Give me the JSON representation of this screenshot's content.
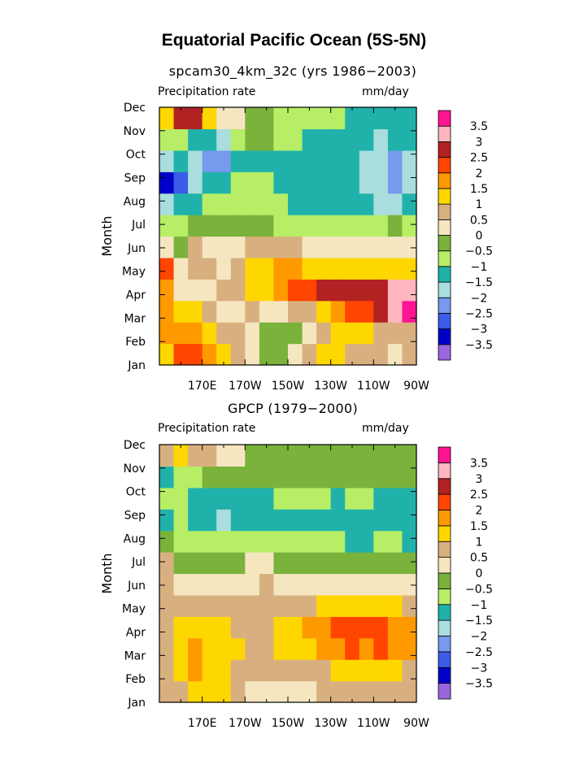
{
  "figure": {
    "title": "Equatorial Pacific Ocean (5S-5N)"
  },
  "palette": {
    "levels": [
      "-3.5",
      "-3",
      "-2.5",
      "-2",
      "-1.5",
      "-1",
      "-0.5",
      "0",
      "0.5",
      "1",
      "1.5",
      "2",
      "2.5",
      "3",
      "3.5"
    ],
    "colors": [
      "#9966dd",
      "#0000c8",
      "#3b5ce6",
      "#7799ee",
      "#aadddd",
      "#20b2aa",
      "#b7ee66",
      "#7ab23c",
      "#f5e6c0",
      "#d8b080",
      "#ffd700",
      "#ff9900",
      "#ff4500",
      "#b22222",
      "#ffb6c1",
      "#ff1493"
    ]
  },
  "chart_data": [
    {
      "type": "heatmap",
      "title": "spcam30_4km_32c (yrs 1986−2003)",
      "left_label": "Precipitation rate",
      "right_label": "mm/day",
      "ylabel": "Month",
      "x_ticks": [
        "170E",
        "170W",
        "150W",
        "130W",
        "110W",
        "90W"
      ],
      "y_ticks": [
        "Jan",
        "Feb",
        "Mar",
        "Apr",
        "May",
        "Jun",
        "Jul",
        "Aug",
        "Sep",
        "Oct",
        "Nov",
        "Dec"
      ],
      "lon_range": [
        150,
        270
      ],
      "grid": [
        [
          1.2,
          2.2,
          2.0,
          1.7,
          1.2,
          0.8,
          0.2,
          -0.3,
          -0.3,
          0.3,
          0.6,
          1.0,
          1.4,
          0.6,
          0.5,
          0.5,
          0.4,
          0.7
        ],
        [
          1.7,
          1.9,
          1.7,
          1.2,
          0.8,
          0.5,
          0.0,
          -0.4,
          -0.4,
          -0.2,
          0.3,
          0.6,
          1.0,
          1.4,
          1.1,
          0.9,
          0.6,
          0.7
        ],
        [
          1.6,
          1.4,
          1.0,
          0.6,
          0.2,
          0.3,
          0.7,
          0.3,
          0.3,
          0.6,
          0.8,
          1.1,
          1.5,
          2.2,
          2.4,
          2.7,
          3.1,
          3.7
        ],
        [
          1.8,
          0.2,
          0.2,
          0.4,
          0.6,
          0.9,
          1.3,
          1.4,
          1.8,
          2.1,
          2.3,
          2.7,
          2.6,
          2.7,
          2.8,
          2.8,
          3.2,
          3.0
        ],
        [
          2.1,
          0.4,
          0.6,
          0.5,
          0.2,
          0.6,
          1.2,
          1.4,
          1.6,
          1.5,
          1.4,
          1.2,
          1.0,
          1.1,
          1.0,
          1.1,
          1.2,
          1.3
        ],
        [
          0.0,
          -0.3,
          0.6,
          0.3,
          0.1,
          0.0,
          0.6,
          0.9,
          0.8,
          0.6,
          0.3,
          0.2,
          0.1,
          0.2,
          0.0,
          0.1,
          0.3,
          0.4
        ],
        [
          -0.8,
          -0.9,
          -0.5,
          -0.3,
          -0.5,
          -0.4,
          -0.3,
          -0.2,
          -0.6,
          -0.6,
          -0.7,
          -0.6,
          -0.7,
          -0.8,
          -0.9,
          -0.8,
          -0.4,
          -0.6
        ],
        [
          -1.7,
          -1.5,
          -1.2,
          -1.0,
          -0.8,
          -0.8,
          -0.9,
          -0.9,
          -0.9,
          -1.1,
          -1.2,
          -1.3,
          -1.3,
          -1.4,
          -1.4,
          -1.6,
          -1.6,
          -1.3
        ],
        [
          -3.5,
          -2.8,
          -2.0,
          -1.5,
          -1.2,
          -1.0,
          -0.9,
          -1.0,
          -1.2,
          -1.1,
          -1.2,
          -1.3,
          -1.3,
          -1.4,
          -1.6,
          -2.0,
          -2.3,
          -1.6
        ],
        [
          -2.0,
          -1.5,
          -2.0,
          -2.1,
          -2.2,
          -1.4,
          -1.2,
          -1.2,
          -1.1,
          -1.2,
          -1.2,
          -1.2,
          -1.2,
          -1.3,
          -1.6,
          -1.8,
          -2.2,
          -1.6
        ],
        [
          -0.6,
          -0.8,
          -1.2,
          -1.4,
          -1.7,
          -0.8,
          -0.4,
          -0.5,
          -0.7,
          -0.9,
          -1.1,
          -1.1,
          -1.2,
          -1.2,
          -1.4,
          -1.6,
          -1.5,
          -1.5
        ],
        [
          1.2,
          2.5,
          2.6,
          1.0,
          0.3,
          0.0,
          -0.3,
          -0.4,
          -0.7,
          -0.8,
          -0.9,
          -0.9,
          -1.0,
          -1.1,
          -1.2,
          -1.2,
          -1.3,
          -1.3
        ]
      ]
    },
    {
      "type": "heatmap",
      "title": "GPCP (1979−2000)",
      "left_label": "Precipitation rate",
      "right_label": "mm/day",
      "ylabel": "Month",
      "x_ticks": [
        "170E",
        "170W",
        "150W",
        "130W",
        "110W",
        "90W"
      ],
      "y_ticks": [
        "Jan",
        "Feb",
        "Mar",
        "Apr",
        "May",
        "Jun",
        "Jul",
        "Aug",
        "Sep",
        "Oct",
        "Nov",
        "Dec"
      ],
      "lon_range": [
        150,
        270
      ],
      "grid": [
        [
          0.6,
          0.9,
          1.4,
          1.2,
          1.3,
          0.9,
          0.4,
          0.4,
          0.4,
          0.4,
          0.4,
          0.5,
          0.6,
          0.6,
          0.5,
          0.5,
          0.6,
          0.7
        ],
        [
          0.7,
          1.3,
          1.5,
          1.4,
          1.2,
          0.8,
          0.6,
          0.6,
          0.6,
          0.7,
          0.8,
          0.9,
          1.0,
          1.1,
          1.1,
          1.0,
          1.0,
          0.9
        ],
        [
          0.9,
          1.3,
          1.6,
          1.4,
          1.3,
          1.0,
          0.7,
          0.9,
          1.0,
          1.3,
          1.4,
          1.7,
          1.8,
          2.0,
          1.9,
          2.1,
          1.7,
          1.5
        ],
        [
          0.8,
          1.0,
          1.4,
          1.2,
          1.1,
          0.8,
          0.7,
          0.8,
          1.0,
          1.4,
          1.6,
          1.9,
          2.2,
          2.3,
          2.2,
          2.1,
          1.8,
          1.5
        ],
        [
          0.5,
          0.6,
          0.9,
          0.8,
          0.6,
          0.5,
          0.6,
          0.7,
          0.6,
          0.7,
          0.8,
          1.0,
          1.1,
          1.2,
          1.2,
          1.1,
          1.0,
          0.9
        ],
        [
          0.6,
          0.2,
          0.3,
          0.2,
          0.1,
          0.3,
          0.4,
          0.5,
          0.3,
          0.2,
          0.1,
          0.1,
          0.1,
          0.2,
          0.2,
          0.1,
          0.1,
          0.1
        ],
        [
          0.6,
          -0.2,
          -0.3,
          -0.2,
          -0.1,
          -0.1,
          0.0,
          0.0,
          -0.1,
          -0.1,
          -0.2,
          -0.3,
          -0.3,
          -0.3,
          -0.2,
          -0.1,
          -0.2,
          -0.2
        ],
        [
          -0.3,
          -0.6,
          -0.7,
          -0.8,
          -0.8,
          -0.8,
          -0.7,
          -0.8,
          -0.8,
          -0.9,
          -1.0,
          -1.0,
          -1.0,
          -1.1,
          -1.1,
          -0.9,
          -1.0,
          -1.1
        ],
        [
          -1.1,
          -1.0,
          -1.3,
          -1.2,
          -1.7,
          -1.3,
          -1.3,
          -1.2,
          -1.2,
          -1.3,
          -1.1,
          -1.2,
          -1.4,
          -1.2,
          -1.1,
          -1.1,
          -1.4,
          -1.3
        ],
        [
          -0.9,
          -0.8,
          -1.1,
          -1.2,
          -1.3,
          -1.2,
          -1.1,
          -1.1,
          -1.0,
          -0.9,
          -0.8,
          -1.0,
          -1.1,
          -0.8,
          -0.7,
          -1.1,
          -1.2,
          -1.1
        ],
        [
          -1.1,
          -0.6,
          -0.6,
          -0.5,
          -0.5,
          -0.4,
          -0.4,
          -0.3,
          -0.3,
          -0.3,
          -0.3,
          -0.3,
          -0.4,
          -0.4,
          -0.3,
          -0.4,
          -0.4,
          -0.3
        ],
        [
          0.7,
          1.2,
          0.9,
          0.5,
          0.2,
          0.0,
          -0.1,
          -0.2,
          -0.2,
          -0.2,
          -0.2,
          -0.2,
          -0.3,
          -0.3,
          -0.3,
          -0.3,
          -0.4,
          -0.4
        ]
      ]
    }
  ]
}
